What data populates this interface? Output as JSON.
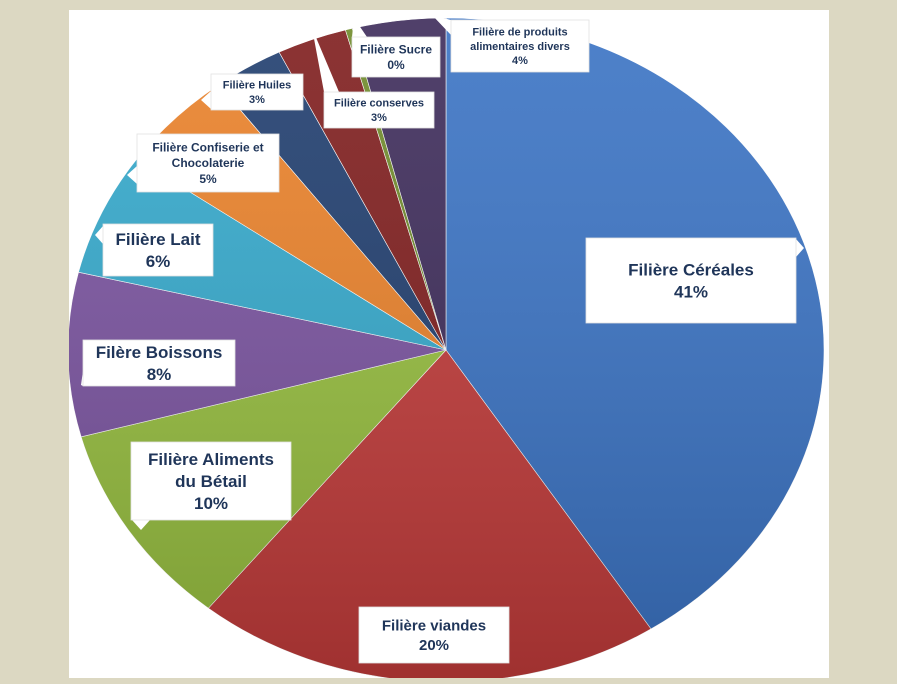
{
  "chart_data": {
    "type": "pie",
    "title": "",
    "slices": [
      {
        "label": "Filière Céréales",
        "value": 41,
        "value_label": "41%",
        "color": "#3a73c4"
      },
      {
        "label": "Filière viandes",
        "value": 20,
        "value_label": "20%",
        "color": "#c23b3a"
      },
      {
        "label": "Filière Aliments du Bétail",
        "value": 10,
        "value_label": "10%",
        "color": "#97bf3f"
      },
      {
        "label": "Filère Boissons",
        "value": 8,
        "value_label": "8%",
        "color": "#7a53a0"
      },
      {
        "label": "Filière Lait",
        "value": 6,
        "value_label": "6%",
        "color": "#34a9cc"
      },
      {
        "label": "Filière Confiserie et Chocolaterie",
        "value": 5,
        "value_label": "5%",
        "color": "#ea8129"
      },
      {
        "label": "Filière Huiles",
        "value": 3,
        "value_label": "3%",
        "color": "#1f3d6e"
      },
      {
        "label": "Filière conserves",
        "value": 3,
        "value_label": "3%",
        "color": "#7f1d1d"
      },
      {
        "label": "Filière Sucre",
        "value": 0.3,
        "value_label": "0%",
        "color": "#6f8a2a"
      },
      {
        "label": "Filière de produits alimentaires divers",
        "value": 4,
        "value_label": "4%",
        "color": "#3d2b5a"
      }
    ]
  }
}
